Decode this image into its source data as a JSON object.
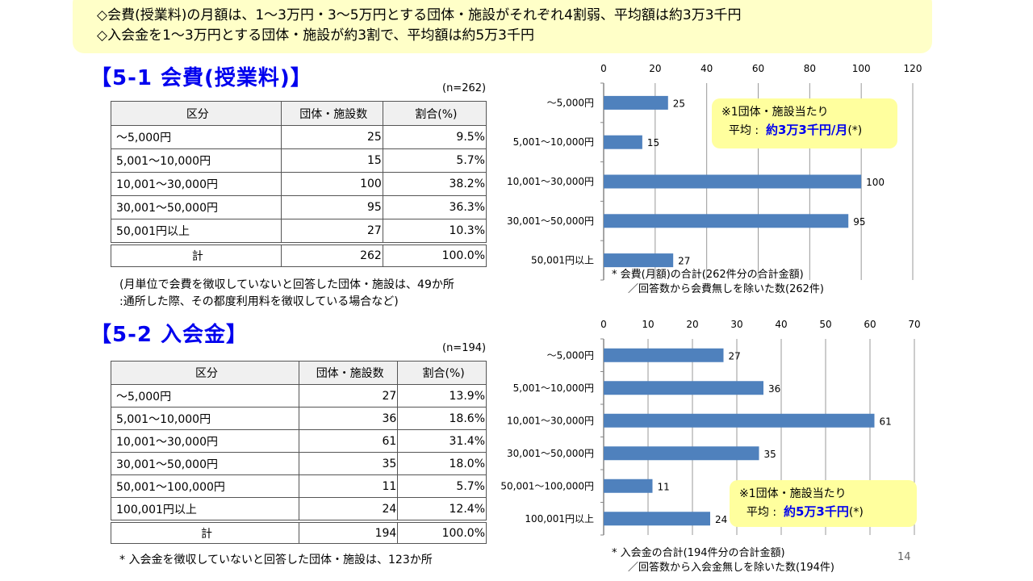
{
  "summary": {
    "line1": "◇会費(授業料)の月額は、1～3万円・3～5万円とする団体・施設がそれぞれ4割弱、平均額は約3万3千円",
    "line2": "◇入会金を1～3万円とする団体・施設が約3割で、平均額は約5万3千円"
  },
  "section1": {
    "title": "【5-1  会費(授業料)】",
    "n": "(n=262)",
    "headers": [
      "区分",
      "団体・施設数",
      "割合(%)"
    ],
    "rows": [
      [
        "～5,000円",
        "25",
        "9.5%"
      ],
      [
        "5,001～10,000円",
        "15",
        "5.7%"
      ],
      [
        "10,001～30,000円",
        "100",
        "38.2%"
      ],
      [
        "30,001～50,000円",
        "95",
        "36.3%"
      ],
      [
        "50,001円以上",
        "27",
        "10.3%"
      ]
    ],
    "total": [
      "計",
      "262",
      "100.0%"
    ],
    "note1": "(月単位で会費を徴収していないと回答した団体・施設は、49か所",
    "note2": ":通所した際、その都度利用料を徴収している場合など)",
    "callout_line1": "※1団体・施設当たり",
    "callout_avg_label": "平均 :",
    "callout_avg_value": "約3万3千円/月",
    "callout_suffix": "(*)",
    "chart_note1": "* 会費(月額)の合計(262件分の合計金額)",
    "chart_note2": "／回答数から会費無しを除いた数(262件)"
  },
  "section2": {
    "title": "【5-2  入会金】",
    "n": "(n=194)",
    "headers": [
      "区分",
      "団体・施設数",
      "割合(%)"
    ],
    "rows": [
      [
        "～5,000円",
        "27",
        "13.9%"
      ],
      [
        "5,001～10,000円",
        "36",
        "18.6%"
      ],
      [
        "10,001～30,000円",
        "61",
        "31.4%"
      ],
      [
        "30,001～50,000円",
        "35",
        "18.0%"
      ],
      [
        "50,001～100,000円",
        "11",
        "5.7%"
      ],
      [
        "100,001円以上",
        "24",
        "12.4%"
      ]
    ],
    "total": [
      "計",
      "194",
      "100.0%"
    ],
    "note1": "* 入会金を徴収していないと回答した団体・施設は、123か所",
    "callout_line1": "※1団体・施設当たり",
    "callout_avg_label": "平均 :",
    "callout_avg_value": "約5万3千円",
    "callout_suffix": "(*)",
    "chart_note1": "* 入会金の合計(194件分の合計金額)",
    "chart_note2": "／回答数から入会金無しを除いた数(194件)"
  },
  "page_number": "14",
  "colors": {
    "bar": "#4f81bd",
    "title": "#0000ee",
    "callout": "#ffff9e"
  },
  "chart_data": [
    {
      "type": "bar",
      "orientation": "horizontal",
      "title": "",
      "categories": [
        "～5,000円",
        "5,001～10,000円",
        "10,001～30,000円",
        "30,001～50,000円",
        "50,001円以上"
      ],
      "values": [
        25,
        15,
        100,
        95,
        27
      ],
      "xlim": [
        0,
        120
      ],
      "xticks": [
        0,
        20,
        40,
        60,
        80,
        100,
        120
      ],
      "grid": true,
      "axis_position": "top"
    },
    {
      "type": "bar",
      "orientation": "horizontal",
      "title": "",
      "categories": [
        "～5,000円",
        "5,001～10,000円",
        "10,001～30,000円",
        "30,001～50,000円",
        "50,001～100,000円",
        "100,001円以上"
      ],
      "values": [
        27,
        36,
        61,
        35,
        11,
        24
      ],
      "xlim": [
        0,
        70
      ],
      "xticks": [
        0,
        10,
        20,
        30,
        40,
        50,
        60,
        70
      ],
      "grid": true,
      "axis_position": "top"
    }
  ]
}
